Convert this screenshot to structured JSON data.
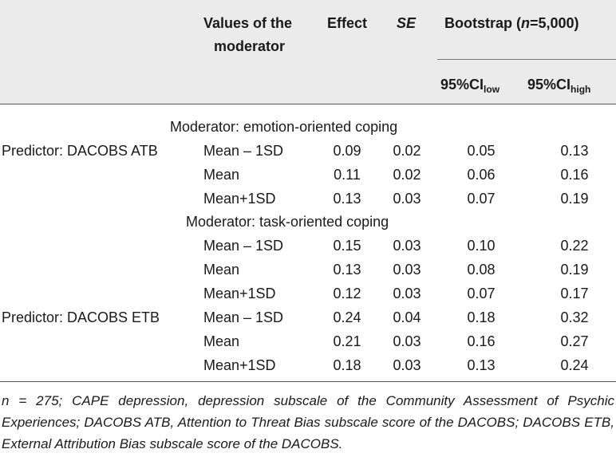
{
  "header": {
    "values_line1": "Values of the",
    "values_line2": "moderator",
    "effect": "Effect",
    "se": "SE",
    "bootstrap_prefix": "Bootstrap (",
    "bootstrap_n": "n",
    "bootstrap_suffix": "=5,000)",
    "ci_low_main": "95%CI",
    "ci_low_sub": "low",
    "ci_high_main": "95%CI",
    "ci_high_sub": "high"
  },
  "sections": {
    "emotion": "Moderator: emotion-oriented coping",
    "task": "Moderator: task-oriented coping"
  },
  "predictors": {
    "atb": "Predictor: DACOBS ATB",
    "etb": "Predictor: DACOBS ETB"
  },
  "rows": [
    {
      "value": "Mean – 1SD",
      "effect": "0.09",
      "se": "0.02",
      "low": "0.05",
      "high": "0.13"
    },
    {
      "value": "Mean",
      "effect": "0.11",
      "se": "0.02",
      "low": "0.06",
      "high": "0.16"
    },
    {
      "value": "Mean+1SD",
      "effect": "0.13",
      "se": "0.03",
      "low": "0.07",
      "high": "0.19"
    },
    {
      "value": "Mean – 1SD",
      "effect": "0.15",
      "se": "0.03",
      "low": "0.10",
      "high": "0.22"
    },
    {
      "value": "Mean",
      "effect": "0.13",
      "se": "0.03",
      "low": "0.08",
      "high": "0.19"
    },
    {
      "value": "Mean+1SD",
      "effect": "0.12",
      "se": "0.03",
      "low": "0.07",
      "high": "0.17"
    },
    {
      "value": "Mean – 1SD",
      "effect": "0.24",
      "se": "0.04",
      "low": "0.18",
      "high": "0.32"
    },
    {
      "value": "Mean",
      "effect": "0.21",
      "se": "0.03",
      "low": "0.16",
      "high": "0.27"
    },
    {
      "value": "Mean+1SD",
      "effect": "0.18",
      "se": "0.03",
      "low": "0.13",
      "high": "0.24"
    }
  ],
  "footnote": {
    "n_prefix": "n",
    "text": " = 275; CAPE depression, depression subscale of the Community Assessment of Psychic Experiences; DACOBS ATB, Attention to Threat Bias subscale score of the DACOBS; DACOBS ETB, External Attribution Bias subscale score of the DACOBS."
  }
}
